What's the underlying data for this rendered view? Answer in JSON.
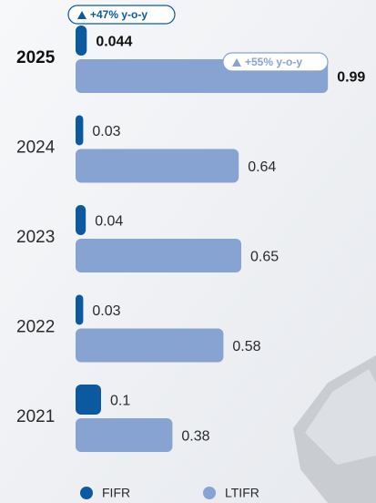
{
  "chart_data": {
    "type": "bar",
    "orientation": "horizontal",
    "categories": [
      "2025",
      "2024",
      "2023",
      "2022",
      "2021"
    ],
    "series": [
      {
        "name": "FIFR",
        "color": "#0b5aa0",
        "values": [
          0.044,
          0.03,
          0.04,
          0.03,
          0.1
        ]
      },
      {
        "name": "LTIFR",
        "color": "#87a3d1",
        "values": [
          0.99,
          0.64,
          0.65,
          0.58,
          0.38
        ]
      }
    ],
    "annotations": [
      "+47% y-o-y",
      "+55% y-o-y"
    ]
  }
}
